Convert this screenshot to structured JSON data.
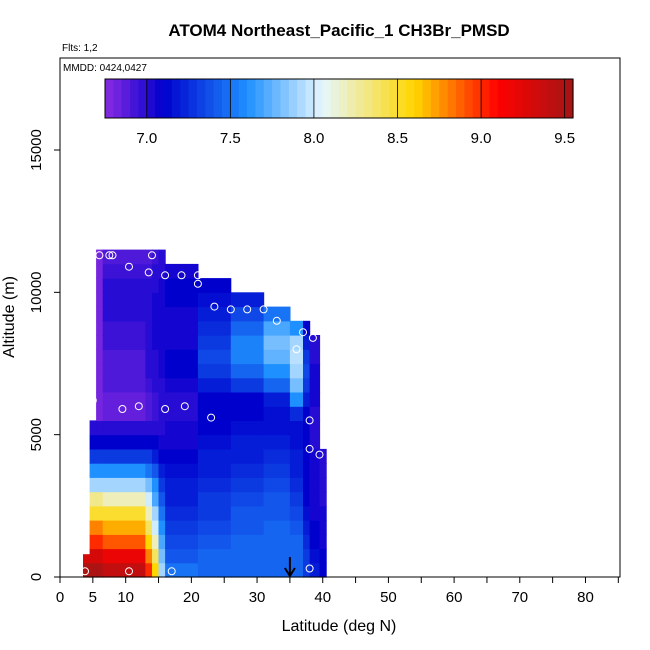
{
  "chart_data": {
    "type": "heatmap",
    "title": "ATOM4 Northeast_Pacific_1 CH3Br_PMSD",
    "flights_label": "Flts: 1,2",
    "dates_label": "MMDD: 0424,0427",
    "xlabel": "Latitude (deg N)",
    "ylabel": "Altitude (m)",
    "xlim": [
      0,
      85
    ],
    "ylim": [
      0,
      17500
    ],
    "x_ticks": [
      0,
      5,
      10,
      20,
      30,
      40,
      50,
      60,
      70,
      80
    ],
    "x_minor_ticks": [
      0,
      5,
      10,
      15,
      20,
      25,
      30,
      35,
      40,
      45,
      50,
      55,
      60,
      65,
      70,
      75,
      80,
      85
    ],
    "y_ticks": [
      0,
      5000,
      10000,
      15000
    ],
    "colorbar": {
      "min": 6.75,
      "max": 9.55,
      "ticks": [
        "7.0",
        "7.5",
        "8.0",
        "8.5",
        "9.0",
        "9.5"
      ],
      "tick_values": [
        7.0,
        7.5,
        8.0,
        8.5,
        9.0,
        9.5
      ],
      "colors": [
        "#8a2be2",
        "#0000cd",
        "#1e90ff",
        "#e6f7ff",
        "#ffd700",
        "#ff0000",
        "#a31515"
      ],
      "stops": [
        6.75,
        7.1,
        7.6,
        8.05,
        8.6,
        9.1,
        9.55
      ]
    },
    "columns": [
      {
        "x0": 3.5,
        "x1": 4.5,
        "top": 800,
        "values": [
          9.5,
          9.3
        ]
      },
      {
        "x0": 4.5,
        "x1": 5.5,
        "top": 5500,
        "values": [
          9.5,
          9.3,
          9.0,
          8.8,
          8.5,
          8.3,
          7.9,
          7.6,
          7.3,
          7.1,
          7.0
        ]
      },
      {
        "x0": 5.5,
        "x1": 6.5,
        "top": 11500,
        "values": [
          9.5,
          9.3,
          9.0,
          8.8,
          8.5,
          8.3,
          7.9,
          7.6,
          7.3,
          7.1,
          7.0,
          6.8,
          6.8,
          6.8,
          6.8,
          6.8,
          6.8,
          6.8,
          6.8,
          6.8,
          6.8,
          6.8,
          6.8
        ]
      },
      {
        "x0": 6.5,
        "x1": 13,
        "top": 11500,
        "values": [
          9.4,
          9.2,
          8.9,
          8.7,
          8.5,
          8.2,
          7.9,
          7.6,
          7.3,
          7.1,
          7.0,
          6.85,
          6.85,
          6.9,
          6.9,
          6.9,
          6.95,
          6.95,
          7.0,
          7.0,
          7.0,
          6.95,
          6.9
        ]
      },
      {
        "x0": 13,
        "x1": 14,
        "top": 11500,
        "values": [
          9.0,
          8.8,
          8.6,
          8.4,
          8.2,
          8.0,
          7.8,
          7.5,
          7.3,
          7.1,
          7.0,
          6.9,
          6.9,
          6.95,
          7.0,
          7.0,
          7.0,
          7.0,
          7.0,
          7.0,
          7.0,
          6.95,
          6.9
        ]
      },
      {
        "x0": 14,
        "x1": 15,
        "top": 11500,
        "values": [
          8.6,
          8.4,
          8.2,
          8.0,
          7.9,
          7.7,
          7.6,
          7.4,
          7.2,
          7.1,
          7.0,
          6.95,
          6.95,
          7.0,
          7.0,
          7.0,
          7.05,
          7.05,
          7.05,
          7.05,
          7.0,
          7.0,
          6.95
        ]
      },
      {
        "x0": 15,
        "x1": 16,
        "top": 11500,
        "values": [
          7.9,
          7.8,
          7.7,
          7.6,
          7.5,
          7.4,
          7.3,
          7.2,
          7.1,
          7.05,
          7.0,
          7.0,
          7.0,
          7.0,
          7.05,
          7.05,
          7.05,
          7.05,
          7.05,
          7.05,
          7.05,
          7.0,
          7.0
        ]
      },
      {
        "x0": 16,
        "x1": 21,
        "top": 11000,
        "values": [
          7.5,
          7.4,
          7.35,
          7.3,
          7.25,
          7.2,
          7.2,
          7.15,
          7.1,
          7.05,
          7.05,
          7.0,
          7.0,
          7.05,
          7.1,
          7.1,
          7.05,
          7.05,
          7.05,
          7.1,
          7.1,
          7.05
        ]
      },
      {
        "x0": 21,
        "x1": 26,
        "top": 10500,
        "values": [
          7.45,
          7.45,
          7.4,
          7.35,
          7.3,
          7.3,
          7.25,
          7.2,
          7.2,
          7.15,
          7.1,
          7.1,
          7.1,
          7.2,
          7.3,
          7.35,
          7.3,
          7.25,
          7.2,
          7.15,
          7.1
        ]
      },
      {
        "x0": 26,
        "x1": 31,
        "top": 10000,
        "values": [
          7.45,
          7.45,
          7.45,
          7.4,
          7.4,
          7.35,
          7.3,
          7.25,
          7.2,
          7.2,
          7.15,
          7.1,
          7.1,
          7.3,
          7.45,
          7.55,
          7.55,
          7.45,
          7.35,
          7.2
        ]
      },
      {
        "x0": 31,
        "x1": 35,
        "top": 9500,
        "values": [
          7.45,
          7.45,
          7.45,
          7.45,
          7.4,
          7.4,
          7.35,
          7.3,
          7.25,
          7.2,
          7.15,
          7.15,
          7.2,
          7.45,
          7.6,
          7.75,
          7.8,
          7.7,
          7.5
        ]
      },
      {
        "x0": 35,
        "x1": 37,
        "top": 9000,
        "values": [
          7.45,
          7.45,
          7.45,
          7.4,
          7.35,
          7.3,
          7.25,
          7.2,
          7.2,
          7.15,
          7.15,
          7.25,
          7.6,
          7.8,
          7.9,
          7.95,
          7.9,
          7.6
        ]
      },
      {
        "x0": 37,
        "x1": 38,
        "top": 9000,
        "values": [
          7.3,
          7.3,
          7.25,
          7.2,
          7.15,
          7.1,
          7.1,
          7.1,
          7.1,
          7.1,
          7.1,
          7.1,
          7.2,
          7.3,
          7.35,
          7.3,
          7.2,
          7.1
        ]
      },
      {
        "x0": 38,
        "x1": 39.5,
        "top": 8500,
        "values": [
          7.2,
          7.15,
          7.1,
          7.1,
          7.05,
          7.05,
          7.05,
          7.05,
          7.05,
          7.0,
          7.0,
          7.0,
          7.05,
          7.05,
          7.05,
          7.0,
          7.0
        ]
      },
      {
        "x0": 39.5,
        "x1": 40.5,
        "top": 4500,
        "values": [
          7.1,
          7.1,
          7.05,
          7.05,
          7.05,
          7.0,
          7.0,
          7.0,
          7.0
        ]
      }
    ],
    "observations": [
      {
        "x": 3.8,
        "y": 200
      },
      {
        "x": 10.5,
        "y": 200
      },
      {
        "x": 17,
        "y": 200
      },
      {
        "x": 38,
        "y": 300
      },
      {
        "x": 3.8,
        "y": 5800
      },
      {
        "x": 5,
        "y": 6200
      },
      {
        "x": 9.5,
        "y": 5900
      },
      {
        "x": 12,
        "y": 6000
      },
      {
        "x": 16,
        "y": 5900
      },
      {
        "x": 19,
        "y": 6000
      },
      {
        "x": 23,
        "y": 5600
      },
      {
        "x": 38,
        "y": 5500
      },
      {
        "x": 38,
        "y": 4500
      },
      {
        "x": 39.5,
        "y": 4300
      },
      {
        "x": 6,
        "y": 11300
      },
      {
        "x": 7.5,
        "y": 11300
      },
      {
        "x": 8,
        "y": 11300
      },
      {
        "x": 14,
        "y": 11300
      },
      {
        "x": 10.5,
        "y": 10900
      },
      {
        "x": 13.5,
        "y": 10700
      },
      {
        "x": 16,
        "y": 10600
      },
      {
        "x": 18.5,
        "y": 10600
      },
      {
        "x": 21,
        "y": 10600
      },
      {
        "x": 21,
        "y": 10300
      },
      {
        "x": 23.5,
        "y": 9500
      },
      {
        "x": 26,
        "y": 9400
      },
      {
        "x": 28.5,
        "y": 9400
      },
      {
        "x": 31,
        "y": 9400
      },
      {
        "x": 33,
        "y": 9000
      },
      {
        "x": 37,
        "y": 8600
      },
      {
        "x": 38.5,
        "y": 8400
      },
      {
        "x": 36,
        "y": 8000
      }
    ],
    "marker_arrow": {
      "x": 35,
      "y_from": 700,
      "y_to": 0
    }
  }
}
